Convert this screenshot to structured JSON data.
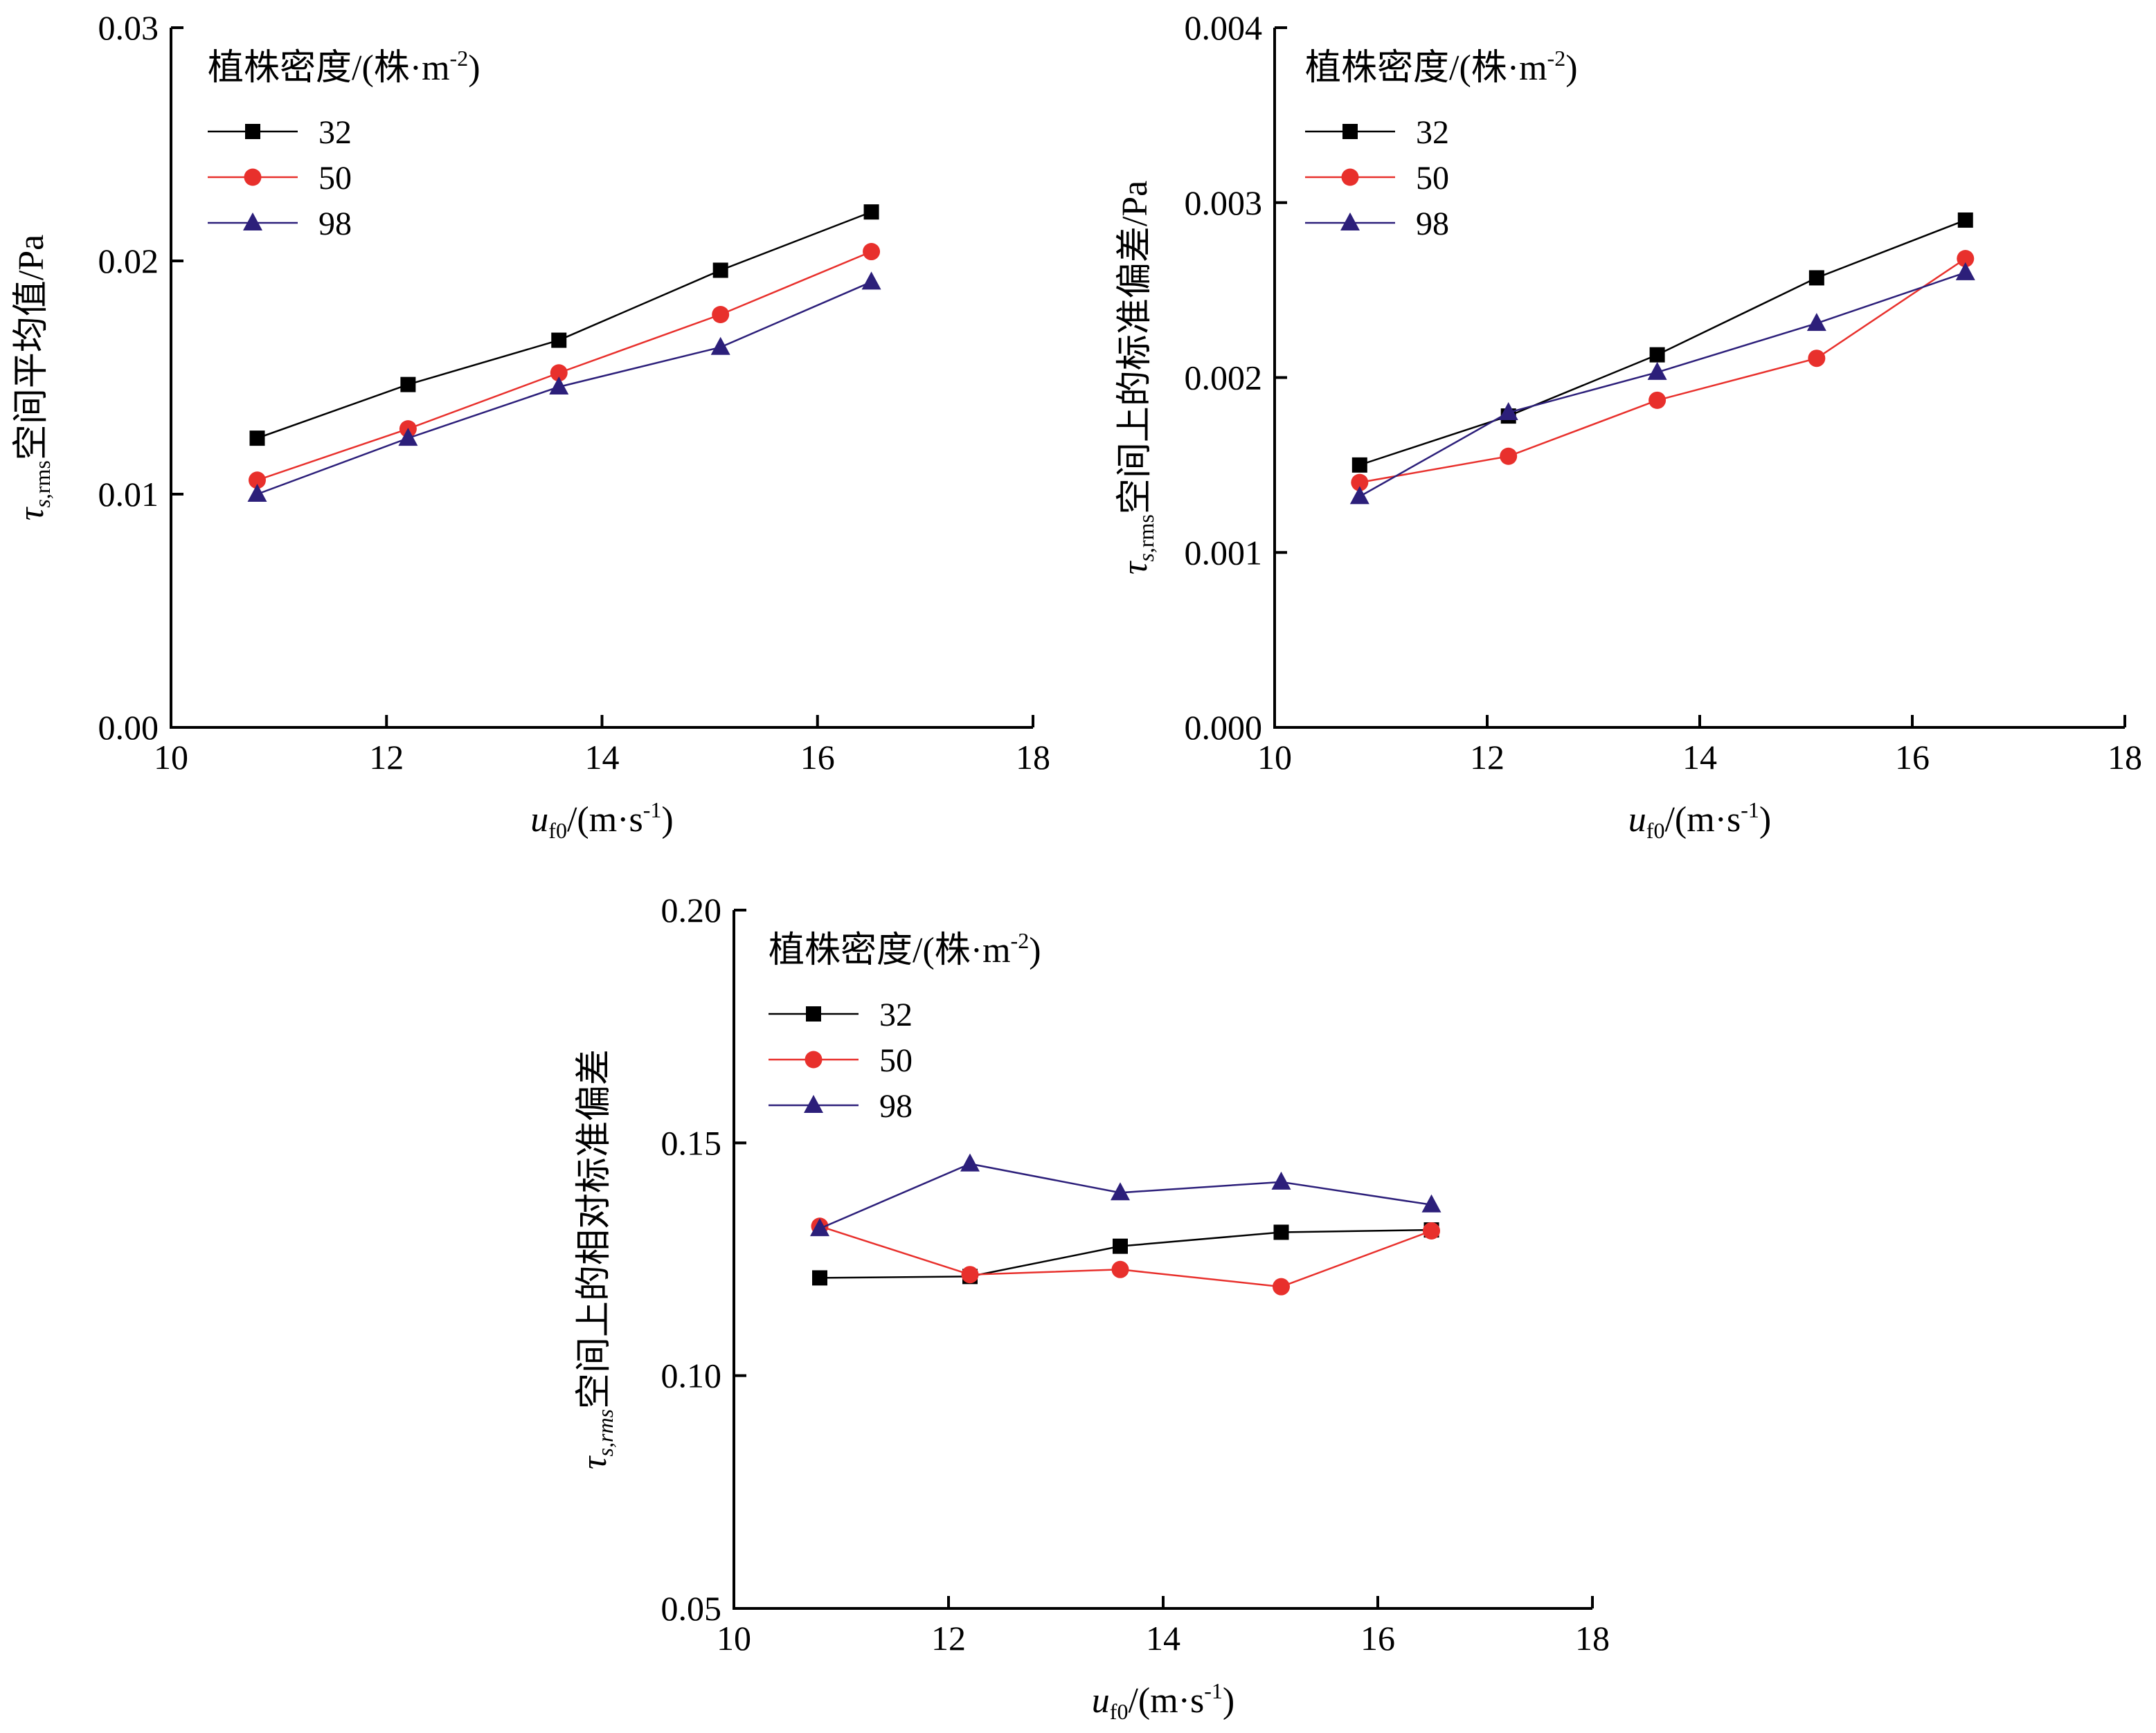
{
  "colors": {
    "s32": "#000000",
    "s50": "#e8302c",
    "s98": "#2c1f7a"
  },
  "chart_data": [
    {
      "type": "line",
      "x": [
        10.8,
        12.2,
        13.6,
        15.1,
        16.5
      ],
      "xlim": [
        10,
        18
      ],
      "ylim": [
        0,
        0.03
      ],
      "xticks": [
        "10",
        "12",
        "14",
        "16",
        "18"
      ],
      "xtick_values": [
        10,
        12,
        14,
        16,
        18
      ],
      "yticks": [
        "0.00",
        "0.01",
        "0.02",
        "0.03"
      ],
      "ytick_values": [
        0,
        0.01,
        0.02,
        0.03
      ],
      "xlabel": {
        "var": "u",
        "sub": "f0",
        "rest": "/(m·s",
        "sup": "-1",
        "end": ")"
      },
      "ylabel": {
        "var": "τ",
        "sub": "s,rms",
        "sub_italic": "s",
        "sub_rest": ",rms",
        "rest": "空间平均值/Pa"
      },
      "legend": {
        "title": "植株密度/(株·m",
        "title_sup": "-2",
        "title_end": ")"
      },
      "series": [
        {
          "name": "32",
          "marker": "square",
          "values": [
            0.0124,
            0.0147,
            0.0166,
            0.0196,
            0.0221
          ]
        },
        {
          "name": "50",
          "marker": "circle",
          "values": [
            0.0106,
            0.0128,
            0.0152,
            0.0177,
            0.0204
          ]
        },
        {
          "name": "98",
          "marker": "triangle",
          "values": [
            0.01,
            0.0124,
            0.0146,
            0.0163,
            0.0191
          ]
        }
      ]
    },
    {
      "type": "line",
      "x": [
        10.8,
        12.2,
        13.6,
        15.1,
        16.5
      ],
      "xlim": [
        10,
        18
      ],
      "ylim": [
        0,
        0.004
      ],
      "xticks": [
        "10",
        "12",
        "14",
        "16",
        "18"
      ],
      "xtick_values": [
        10,
        12,
        14,
        16,
        18
      ],
      "yticks": [
        "0.000",
        "0.001",
        "0.002",
        "0.003",
        "0.004"
      ],
      "ytick_values": [
        0,
        0.001,
        0.002,
        0.003,
        0.004
      ],
      "xlabel": {
        "var": "u",
        "sub": "f0",
        "rest": "/(m·s",
        "sup": "-1",
        "end": ")"
      },
      "ylabel": {
        "var": "τ",
        "sub": "s,rms",
        "sub_italic": "s",
        "sub_rest": ",rms",
        "rest": "空间上的标准偏差/Pa"
      },
      "legend": {
        "title": "植株密度/(株·m",
        "title_sup": "-2",
        "title_end": ")"
      },
      "series": [
        {
          "name": "32",
          "marker": "square",
          "values": [
            0.0015,
            0.00178,
            0.00213,
            0.00257,
            0.0029
          ]
        },
        {
          "name": "50",
          "marker": "circle",
          "values": [
            0.0014,
            0.00155,
            0.00187,
            0.00211,
            0.00268
          ]
        },
        {
          "name": "98",
          "marker": "triangle",
          "values": [
            0.00132,
            0.0018,
            0.00203,
            0.00231,
            0.0026
          ]
        }
      ]
    },
    {
      "type": "line",
      "x": [
        10.8,
        12.2,
        13.6,
        15.1,
        16.5
      ],
      "xlim": [
        10,
        18
      ],
      "ylim": [
        0.05,
        0.2
      ],
      "xticks": [
        "10",
        "12",
        "14",
        "16",
        "18"
      ],
      "xtick_values": [
        10,
        12,
        14,
        16,
        18
      ],
      "yticks": [
        "0.05",
        "0.10",
        "0.15",
        "0.20"
      ],
      "ytick_values": [
        0.05,
        0.1,
        0.15,
        0.2
      ],
      "xlabel": {
        "var": "u",
        "sub": "f0",
        "rest": "/(m·s",
        "sup": "-1",
        "end": ")"
      },
      "ylabel": {
        "var": "τ",
        "sub": "s,rms",
        "sub_italic": "s,rms",
        "sub_rest": "",
        "rest": "空间上的相对标准偏差"
      },
      "legend": {
        "title": "植株密度/(株·m",
        "title_sup": "-2",
        "title_end": ")"
      },
      "series": [
        {
          "name": "32",
          "marker": "square",
          "values": [
            0.121,
            0.1213,
            0.1278,
            0.1308,
            0.1313
          ]
        },
        {
          "name": "50",
          "marker": "circle",
          "values": [
            0.1321,
            0.1217,
            0.1228,
            0.1191,
            0.1311
          ]
        },
        {
          "name": "98",
          "marker": "triangle",
          "values": [
            0.1316,
            0.1455,
            0.1393,
            0.1416,
            0.1367
          ]
        }
      ]
    }
  ]
}
